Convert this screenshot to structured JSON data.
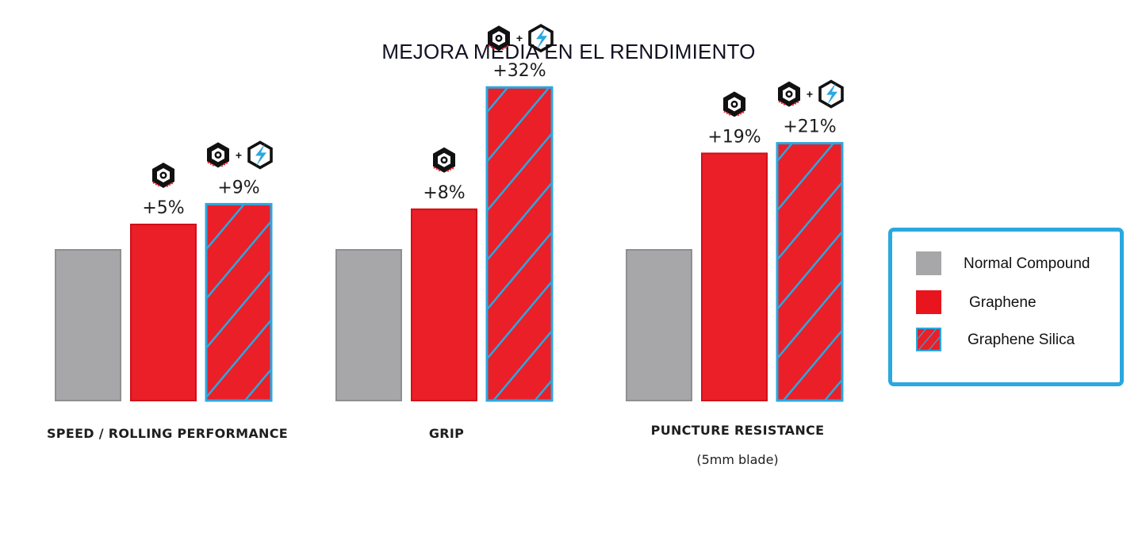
{
  "title": "MEJORA MEDIA EN EL RENDIMIENTO",
  "colors": {
    "normal": "#a7a7a9",
    "graphene": "#ea1f28",
    "silica_stripe": "#2aa8e0",
    "legend_border": "#2aa8e0"
  },
  "icons": {
    "graphene": "graphene-logo-icon",
    "graphene_silica": "graphene-plus-silica-logo-icon"
  },
  "chart_data": {
    "type": "bar",
    "title": "MEJORA MEDIA EN EL RENDIMIENTO",
    "categories": [
      "SPEED / ROLLING PERFORMANCE",
      "GRIP",
      "PUNCTURE RESISTANCE"
    ],
    "category_sublabels": [
      "",
      "",
      "(5mm blade)"
    ],
    "series": [
      {
        "name": "Normal Compound",
        "values": [
          100,
          100,
          100
        ],
        "value_labels": [
          "",
          "",
          ""
        ]
      },
      {
        "name": "Graphene",
        "values": [
          105,
          108,
          119
        ],
        "value_labels": [
          "+5%",
          "+8%",
          "+19%"
        ]
      },
      {
        "name": "Graphene Silica",
        "values": [
          109,
          132,
          121
        ],
        "value_labels": [
          "+9%",
          "+32%",
          "+21%"
        ]
      }
    ],
    "baseline": 100,
    "grid": false,
    "legend": "right"
  },
  "legend": {
    "items": [
      {
        "label": "Normal Compound",
        "style": "normal"
      },
      {
        "label": "Graphene",
        "style": "graphene"
      },
      {
        "label": "Graphene Silica",
        "style": "silica"
      }
    ]
  }
}
